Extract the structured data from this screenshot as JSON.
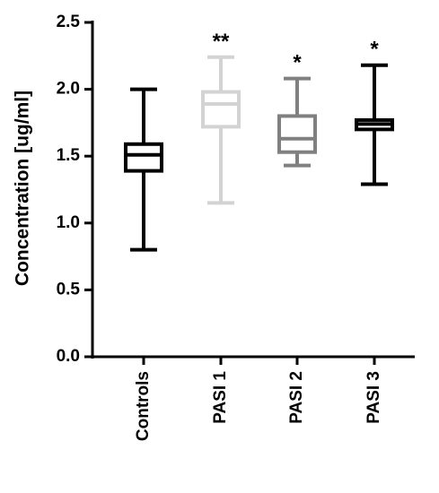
{
  "chart_data": {
    "type": "box",
    "y_label": "Concentration [ug/ml]",
    "categories": [
      "Controls",
      "PASI 1",
      "PASI 2",
      "PASI 3"
    ],
    "boxes": [
      {
        "whislo": 0.8,
        "q1": 1.39,
        "med": 1.51,
        "q3": 1.59,
        "whishi": 2.0,
        "color": "#000000"
      },
      {
        "whislo": 1.15,
        "q1": 1.72,
        "med": 1.89,
        "q3": 1.98,
        "whishi": 2.24,
        "color": "#d3d3d3",
        "annotation": "**"
      },
      {
        "whislo": 1.43,
        "q1": 1.53,
        "med": 1.63,
        "q3": 1.8,
        "whishi": 2.08,
        "color": "#808080",
        "annotation": "*"
      },
      {
        "whislo": 1.29,
        "q1": 1.7,
        "med": 1.74,
        "q3": 1.77,
        "whishi": 2.18,
        "color": "#000000",
        "annotation": "*"
      }
    ],
    "ylim": [
      0,
      2.5
    ],
    "yticks": [
      {
        "value": 0,
        "label": "0.0"
      },
      0.5,
      {
        "value": 1,
        "label": "1.0"
      },
      1.5,
      {
        "value": 2,
        "label": "2.0"
      },
      2.5
    ]
  }
}
